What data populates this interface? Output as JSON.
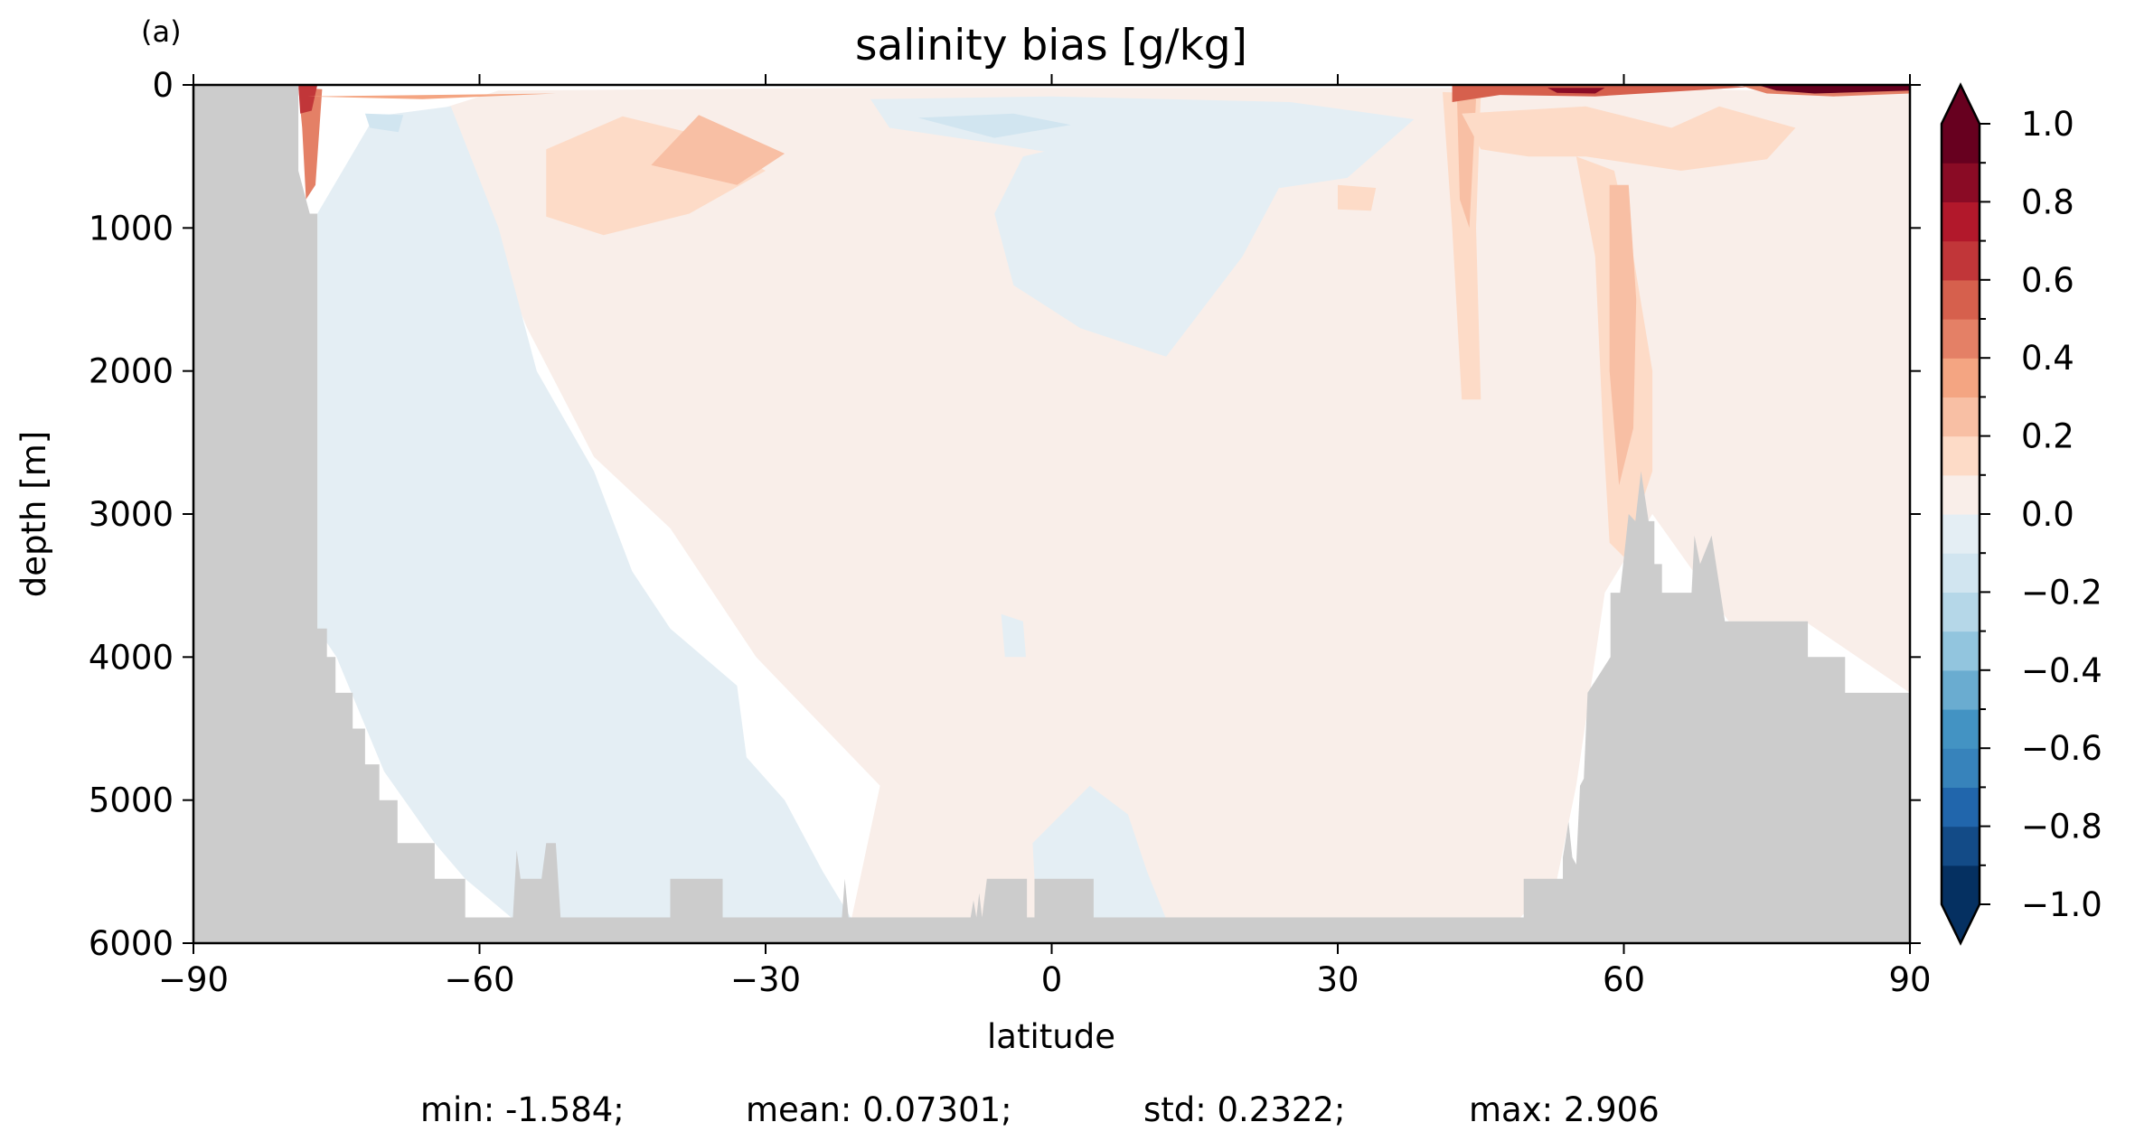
{
  "panel_label": "(a)",
  "chart_data": {
    "type": "heatmap",
    "title": "salinity bias [g/kg]",
    "xlabel": "latitude",
    "ylabel": "depth [m]",
    "xlim": [
      -90,
      90
    ],
    "ylim": [
      6000,
      0
    ],
    "y_inverted": true,
    "x_ticks": [
      -90,
      -60,
      -30,
      0,
      30,
      60,
      90
    ],
    "x_tick_labels": [
      "−90",
      "−60",
      "−30",
      "0",
      "30",
      "60",
      "90"
    ],
    "y_ticks": [
      0,
      1000,
      2000,
      3000,
      4000,
      5000,
      6000
    ],
    "y_tick_labels": [
      "0",
      "1000",
      "2000",
      "3000",
      "4000",
      "5000",
      "6000"
    ],
    "colorbar": {
      "min": -1.0,
      "max": 1.0,
      "step": 0.1,
      "extend": "both",
      "tick_values": [
        1.0,
        0.8,
        0.6,
        0.4,
        0.2,
        0.0,
        -0.2,
        -0.4,
        -0.6,
        -0.8,
        -1.0
      ],
      "tick_labels": [
        "1.0",
        "0.8",
        "0.6",
        "0.4",
        "0.2",
        "0.0",
        "−0.2",
        "−0.4",
        "−0.6",
        "−0.8",
        "−1.0"
      ],
      "colormap": "RdBu_r",
      "colors": [
        "#053061",
        "#134b87",
        "#2166ac",
        "#3783bb",
        "#4393c3",
        "#6aacd0",
        "#92c5de",
        "#b5d7e8",
        "#d1e5f0",
        "#e4eef4",
        "#f9eee9",
        "#fddbc7",
        "#f8bfa4",
        "#f4a582",
        "#e48066",
        "#d6604d",
        "#c13639",
        "#b2182b",
        "#8a0b25",
        "#67001f"
      ],
      "colors_extend": {
        "under": "#053061",
        "over": "#67001f"
      }
    },
    "land_color": "#cccccc",
    "bathymetry": [
      [
        -90,
        0
      ],
      [
        -79,
        0
      ],
      [
        -79,
        600
      ],
      [
        -77.8,
        900
      ],
      [
        -77,
        900
      ],
      [
        -77,
        3800
      ],
      [
        -76,
        3800
      ],
      [
        -76,
        4000
      ],
      [
        -75.1,
        4000
      ],
      [
        -75.1,
        4250
      ],
      [
        -73.3,
        4250
      ],
      [
        -73.3,
        4500
      ],
      [
        -72,
        4500
      ],
      [
        -72,
        4750
      ],
      [
        -70.5,
        4750
      ],
      [
        -70.5,
        5000
      ],
      [
        -68.6,
        5000
      ],
      [
        -68.6,
        5300
      ],
      [
        -64.7,
        5300
      ],
      [
        -64.7,
        5550
      ],
      [
        -61.5,
        5550
      ],
      [
        -61.5,
        5820
      ],
      [
        -58,
        5820
      ],
      [
        -56.5,
        5820
      ],
      [
        -56.1,
        5350
      ],
      [
        -55.7,
        5550
      ],
      [
        -53.5,
        5550
      ],
      [
        -53,
        5300
      ],
      [
        -52,
        5300
      ],
      [
        -51.5,
        5820
      ],
      [
        -40,
        5820
      ],
      [
        -40,
        5550
      ],
      [
        -34.5,
        5550
      ],
      [
        -34.5,
        5820
      ],
      [
        -22,
        5820
      ],
      [
        -21.7,
        5550
      ],
      [
        -21.3,
        5820
      ],
      [
        -8.5,
        5820
      ],
      [
        -8.2,
        5700
      ],
      [
        -7.9,
        5820
      ],
      [
        -7.6,
        5650
      ],
      [
        -7.3,
        5820
      ],
      [
        -6.8,
        5550
      ],
      [
        -2.6,
        5550
      ],
      [
        -2.6,
        5820
      ],
      [
        -1.8,
        5820
      ],
      [
        -1.8,
        5550
      ],
      [
        4.4,
        5550
      ],
      [
        4.4,
        5820
      ],
      [
        49.5,
        5820
      ],
      [
        49.5,
        5550
      ],
      [
        53.6,
        5550
      ],
      [
        53.6,
        5400
      ],
      [
        54.2,
        5150
      ],
      [
        54.6,
        5400
      ],
      [
        55,
        5450
      ],
      [
        55.4,
        4900
      ],
      [
        55.8,
        4850
      ],
      [
        56.2,
        4250
      ],
      [
        58.6,
        4000
      ],
      [
        58.6,
        3550
      ],
      [
        59.6,
        3550
      ],
      [
        60.5,
        3000
      ],
      [
        61.2,
        3050
      ],
      [
        61.8,
        2700
      ],
      [
        62.6,
        3050
      ],
      [
        63.2,
        3050
      ],
      [
        63.2,
        3350
      ],
      [
        64,
        3350
      ],
      [
        64,
        3550
      ],
      [
        67.1,
        3550
      ],
      [
        67.4,
        3150
      ],
      [
        68,
        3350
      ],
      [
        69.2,
        3150
      ],
      [
        70.6,
        3750
      ],
      [
        79.3,
        3750
      ],
      [
        79.3,
        4000
      ],
      [
        83.2,
        4000
      ],
      [
        83.2,
        4250
      ],
      [
        90,
        4250
      ],
      [
        90,
        6000
      ],
      [
        -90,
        6000
      ]
    ],
    "anomaly_regions": [
      {
        "value": 0.05,
        "points": [
          [
            -21,
            5830
          ],
          [
            -18,
            4900
          ],
          [
            -31,
            4000
          ],
          [
            -40,
            3100
          ],
          [
            -48,
            2600
          ],
          [
            -55,
            1700
          ],
          [
            -60,
            900
          ],
          [
            -67,
            230
          ],
          [
            -58,
            40
          ],
          [
            -20,
            20
          ],
          [
            60,
            20
          ],
          [
            75,
            40
          ],
          [
            90,
            30
          ],
          [
            90,
            4250
          ],
          [
            79,
            3750
          ],
          [
            71,
            3750
          ],
          [
            63,
            3000
          ],
          [
            58,
            3550
          ],
          [
            55,
            4900
          ],
          [
            53,
            5550
          ],
          [
            49,
            5830
          ]
        ]
      },
      {
        "value": 0.15,
        "points": [
          [
            -53,
            450
          ],
          [
            -45,
            220
          ],
          [
            -37,
            350
          ],
          [
            -30,
            600
          ],
          [
            -38,
            900
          ],
          [
            -47,
            1050
          ],
          [
            -53,
            920
          ]
        ]
      },
      {
        "value": 0.25,
        "points": [
          [
            -37,
            210
          ],
          [
            -28,
            480
          ],
          [
            -33,
            700
          ],
          [
            -42,
            560
          ]
        ]
      },
      {
        "value": 0.15,
        "points": [
          [
            41,
            50
          ],
          [
            45,
            60
          ],
          [
            44.5,
            1000
          ],
          [
            45,
            2200
          ],
          [
            43,
            2200
          ],
          [
            42,
            1000
          ]
        ]
      },
      {
        "value": 0.25,
        "points": [
          [
            42.5,
            80
          ],
          [
            44.5,
            100
          ],
          [
            43.8,
            1000
          ],
          [
            42.8,
            800
          ]
        ]
      },
      {
        "value": 0.15,
        "points": [
          [
            55,
            500
          ],
          [
            59,
            600
          ],
          [
            61,
            1200
          ],
          [
            63,
            2000
          ],
          [
            63,
            2700
          ],
          [
            60,
            3300
          ],
          [
            58.5,
            3200
          ],
          [
            57.8,
            2400
          ],
          [
            57,
            1200
          ]
        ]
      },
      {
        "value": 0.15,
        "points": [
          [
            43,
            200
          ],
          [
            56,
            150
          ],
          [
            65,
            300
          ],
          [
            70,
            150
          ],
          [
            78,
            300
          ],
          [
            75,
            520
          ],
          [
            66,
            600
          ],
          [
            56,
            500
          ],
          [
            50,
            500
          ],
          [
            45,
            450
          ]
        ]
      },
      {
        "value": 0.25,
        "points": [
          [
            58.5,
            700
          ],
          [
            60.5,
            700
          ],
          [
            61.3,
            1500
          ],
          [
            61,
            2400
          ],
          [
            59.5,
            2800
          ],
          [
            58.5,
            2000
          ]
        ]
      },
      {
        "value": 0.15,
        "points": [
          [
            30,
            700
          ],
          [
            34,
            720
          ],
          [
            33.5,
            880
          ],
          [
            30,
            870
          ]
        ]
      },
      {
        "value": -0.05,
        "points": [
          [
            -77,
            900
          ],
          [
            -71,
            220
          ],
          [
            -63,
            150
          ],
          [
            -58,
            1000
          ],
          [
            -54,
            2000
          ],
          [
            -48,
            2700
          ],
          [
            -44,
            3400
          ],
          [
            -40,
            3800
          ],
          [
            -33,
            4200
          ],
          [
            -32,
            4700
          ],
          [
            -28,
            5000
          ],
          [
            -24,
            5500
          ],
          [
            -21,
            5830
          ],
          [
            -56.5,
            5830
          ],
          [
            -61.5,
            5550
          ],
          [
            -64.7,
            5300
          ],
          [
            -70,
            4800
          ],
          [
            -75,
            4000
          ],
          [
            -77,
            3800
          ]
        ]
      },
      {
        "value": -0.05,
        "points": [
          [
            -3,
            500
          ],
          [
            10,
            300
          ],
          [
            18,
            400
          ],
          [
            24,
            700
          ],
          [
            20,
            1200
          ],
          [
            12,
            1900
          ],
          [
            3,
            1700
          ],
          [
            -4,
            1400
          ],
          [
            -6,
            900
          ]
        ]
      },
      {
        "value": -0.05,
        "points": [
          [
            -19,
            100
          ],
          [
            0,
            80
          ],
          [
            25,
            120
          ],
          [
            38,
            240
          ],
          [
            31,
            650
          ],
          [
            24,
            720
          ],
          [
            12,
            600
          ],
          [
            -7,
            400
          ],
          [
            -17,
            300
          ]
        ]
      },
      {
        "value": -0.05,
        "points": [
          [
            -2,
            5300
          ],
          [
            4,
            4900
          ],
          [
            8,
            5100
          ],
          [
            10,
            5500
          ],
          [
            12,
            5830
          ],
          [
            -1.8,
            5830
          ],
          [
            -1.8,
            5550
          ]
        ]
      },
      {
        "value": -0.05,
        "points": [
          [
            -5.3,
            3700
          ],
          [
            -3,
            3750
          ],
          [
            -2.7,
            4000
          ],
          [
            -4.9,
            4000
          ]
        ]
      },
      {
        "value": -0.15,
        "points": [
          [
            -14,
            230
          ],
          [
            -4,
            200
          ],
          [
            2,
            280
          ],
          [
            -6,
            370
          ]
        ]
      },
      {
        "value": -0.15,
        "points": [
          [
            -72,
            200
          ],
          [
            -68,
            210
          ],
          [
            -68.5,
            330
          ],
          [
            -71.5,
            300
          ]
        ]
      },
      {
        "value": 0.45,
        "points": [
          [
            -79,
            20
          ],
          [
            -76.5,
            30
          ],
          [
            -77.2,
            700
          ],
          [
            -78.2,
            800
          ],
          [
            -78.6,
            300
          ]
        ]
      },
      {
        "value": 0.65,
        "points": [
          [
            -79,
            0
          ],
          [
            -77,
            0
          ],
          [
            -77.6,
            180
          ],
          [
            -78.8,
            200
          ]
        ]
      },
      {
        "value": 0.55,
        "points": [
          [
            42,
            0
          ],
          [
            70,
            0
          ],
          [
            73,
            15
          ],
          [
            57,
            80
          ],
          [
            47,
            70
          ],
          [
            42,
            120
          ]
        ]
      },
      {
        "value": 0.85,
        "points": [
          [
            52,
            20
          ],
          [
            58,
            20
          ],
          [
            57,
            60
          ],
          [
            53,
            55
          ]
        ]
      },
      {
        "value": 0.45,
        "points": [
          [
            72,
            0
          ],
          [
            90,
            0
          ],
          [
            90,
            60
          ],
          [
            82,
            80
          ],
          [
            75,
            60
          ]
        ]
      },
      {
        "value": 0.95,
        "points": [
          [
            74,
            0
          ],
          [
            90,
            0
          ],
          [
            90,
            40
          ],
          [
            80,
            60
          ],
          [
            76,
            40
          ]
        ]
      },
      {
        "value": 0.35,
        "points": [
          [
            -78,
            80
          ],
          [
            -52,
            60
          ],
          [
            -66,
            100
          ]
        ]
      }
    ]
  },
  "stats": {
    "min": "min: -1.584;",
    "mean": "mean: 0.07301;",
    "std": "std: 0.2322;",
    "max": "max: 2.906"
  }
}
